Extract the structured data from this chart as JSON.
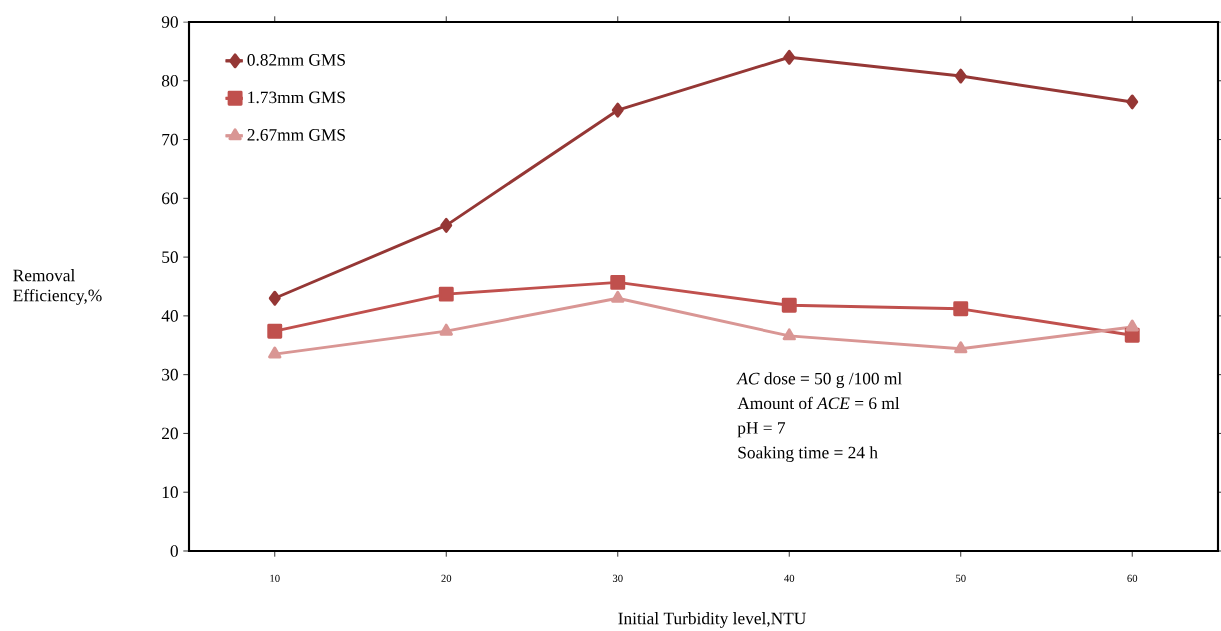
{
  "chart_data": {
    "type": "line",
    "xlabel": "Initial Turbidity level,NTU",
    "ylabel": "Removal Efficiency,%",
    "x": [
      10,
      20,
      30,
      40,
      50,
      60
    ],
    "series": [
      {
        "name": "0.82mm GMS",
        "color": "#953735",
        "marker": "diamond",
        "values": [
          43.0,
          55.4,
          75.0,
          84.0,
          80.8,
          76.4
        ]
      },
      {
        "name": "1.73mm GMS",
        "color": "#c0504d",
        "marker": "square",
        "values": [
          37.4,
          43.7,
          45.7,
          41.8,
          41.2,
          36.7
        ]
      },
      {
        "name": "2.67mm GMS",
        "color": "#d99694",
        "marker": "triangle",
        "values": [
          33.5,
          37.4,
          43.0,
          36.6,
          34.4,
          38.1
        ]
      }
    ],
    "xlim": [
      5,
      65
    ],
    "xticks": [
      10,
      20,
      30,
      40,
      50,
      60
    ],
    "ylim": [
      0,
      90
    ],
    "yticks": [
      0,
      10,
      20,
      30,
      40,
      50,
      60,
      70,
      80,
      90
    ],
    "legend": "top left",
    "grid": false,
    "line_style": "solid",
    "annotations": [
      "*AC* dose = 50 g /100 ml",
      "Amount of *ACE* = 6 ml",
      "pH = 7",
      "Soaking time = 24 h"
    ]
  }
}
